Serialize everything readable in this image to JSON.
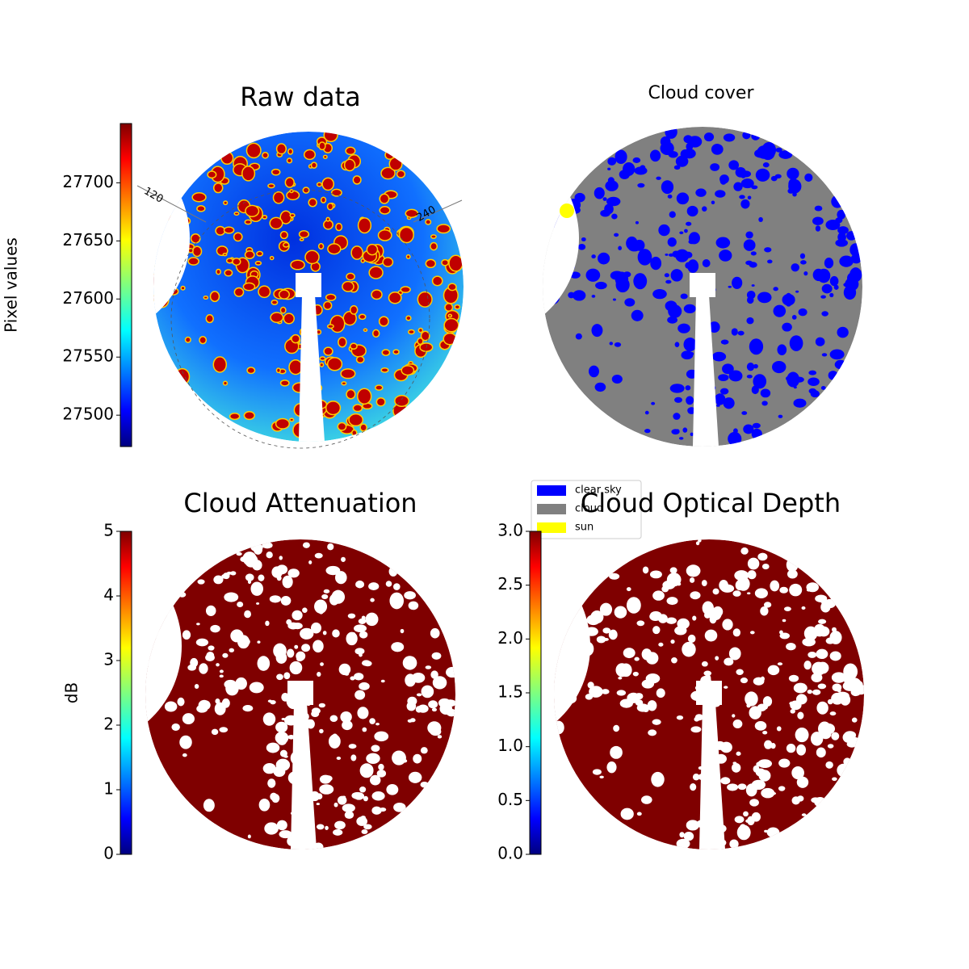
{
  "chart_data": [
    {
      "type": "image",
      "title": "Raw data",
      "colormap": "jet",
      "colorbar": {
        "label": "Pixel values",
        "ylim": [
          27473,
          27751
        ],
        "yticks": [
          27500,
          27550,
          27600,
          27650,
          27700
        ]
      },
      "annotations": [
        "120",
        "240"
      ]
    },
    {
      "type": "image",
      "title": "Cloud cover",
      "legend": [
        {
          "name": "clear sky",
          "color": "#0000ff"
        },
        {
          "name": "cloud",
          "color": "#808080"
        },
        {
          "name": "sun",
          "color": "#ffff00"
        }
      ]
    },
    {
      "type": "image",
      "title": "Cloud Attenuation",
      "colormap": "jet",
      "colorbar": {
        "label": "dB",
        "ylim": [
          0,
          5
        ],
        "yticks": [
          0,
          1,
          2,
          3,
          4,
          5
        ]
      }
    },
    {
      "type": "image",
      "title": "Cloud Optical Depth",
      "colormap": "jet",
      "colorbar": {
        "ylim": [
          0,
          3
        ],
        "yticks": [
          {
            "value": 0,
            "label": "0.0"
          },
          0.5,
          {
            "value": 1,
            "label": "1.0"
          },
          1.5,
          {
            "value": 2,
            "label": "2.0"
          },
          2.5,
          {
            "value": 3,
            "label": "3.0"
          }
        ]
      }
    }
  ]
}
